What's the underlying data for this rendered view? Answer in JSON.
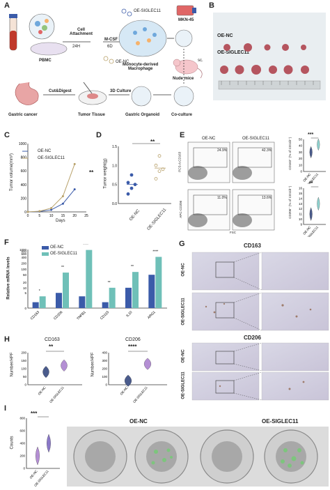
{
  "panels": [
    "A",
    "B",
    "C",
    "D",
    "E",
    "F",
    "G",
    "H",
    "I"
  ],
  "A": {
    "pbmc": "PBMC",
    "cell_attachment": "Cell\nAttachment",
    "t24h": "24H",
    "mcsf": "M-CSF",
    "d6": "6D",
    "oe_siglec11": "OE-SIGLEC11",
    "oe_nc": "OE-NC",
    "mdm": "Monocyte-derived\nMacrophage",
    "mkn45": "MKN-45",
    "sc": "sc.",
    "nude": "Nude mice",
    "gastric_cancer": "Gastric cancer",
    "cut_digest": "Cut&Digest",
    "tumor_tissue": "Tumor Tissue",
    "culture3d": "3D Culture",
    "organoid": "Gastric Organoid",
    "coculture": "Co-culture"
  },
  "B": {
    "row1": "OE-NC",
    "row2": "OE-SIGLEC11"
  },
  "C": {
    "chart_data": {
      "type": "line",
      "x": [
        0,
        5,
        10,
        15,
        20
      ],
      "series": [
        {
          "name": "OE-NC",
          "values": [
            0,
            5,
            30,
            120,
            330
          ],
          "color": "#3b5ba9"
        },
        {
          "name": "OE-SIGLEC11",
          "values": [
            0,
            10,
            55,
            230,
            700
          ],
          "color": "#b8a16a"
        }
      ],
      "xlabel": "Days",
      "ylabel": "Tumor volume(mm³)",
      "xticks": [
        "0",
        "5",
        "10",
        "15",
        "20",
        "25"
      ],
      "yticks": [
        "0",
        "200",
        "400",
        "600",
        "800",
        "1000"
      ],
      "xlim": [
        0,
        25
      ],
      "ylim": [
        0,
        1000
      ],
      "annotation": "**"
    }
  },
  "D": {
    "chart_data": {
      "type": "scatter",
      "categories": [
        "OE-NC",
        "OE-SIGLEC11"
      ],
      "series": [
        {
          "name": "OE-NC",
          "values": [
            0.25,
            0.4,
            0.5,
            0.55,
            0.75
          ],
          "mean": 0.5,
          "color": "#3b5ba9"
        },
        {
          "name": "OE-SIGLEC11",
          "values": [
            0.65,
            0.85,
            0.9,
            1.0,
            1.25
          ],
          "mean": 0.93,
          "color": "#b8a16a"
        }
      ],
      "ylabel": "Tumor weight(g)",
      "yticks": [
        "0.0",
        "0.5",
        "1.0",
        "1.5"
      ],
      "ylim": [
        0,
        1.5
      ],
      "annotation": "**"
    }
  },
  "E": {
    "col1": "OE-NC",
    "col2": "OE-SIGLEC11",
    "y_top": "PCS-A:CD163",
    "y_bot": "APC-CD206",
    "x_lab": "FSC",
    "p1": "24.9%",
    "p2": "42.3%",
    "p3": "11.0%",
    "p4": "13.6%",
    "violin_top": {
      "chart_data": {
        "type": "violin",
        "categories": [
          "OE-NC",
          "OE-SIGLEC11"
        ],
        "values": [
          30,
          42
        ],
        "ylabel": "CD163⁺ (% of CD11b⁺)",
        "yticks": [
          "0",
          "10",
          "20",
          "30",
          "40",
          "50"
        ],
        "ylim": [
          0,
          50
        ],
        "annotation": "***"
      }
    },
    "violin_bot": {
      "chart_data": {
        "type": "violin",
        "categories": [
          "OE-NC",
          "OE-SIGLEC11"
        ],
        "values": [
          11,
          13
        ],
        "ylabel": "CD206⁺ (% of CD11b⁺)",
        "yticks": [
          "9",
          "10",
          "11",
          "12",
          "13",
          "14",
          "15",
          "16"
        ],
        "ylim": [
          9,
          16
        ],
        "annotation": "**"
      }
    }
  },
  "F": {
    "chart_data": {
      "type": "bar",
      "categories": [
        "CD163",
        "CD206",
        "TNFB1",
        "CD115",
        "IL10",
        "ARG1"
      ],
      "series": [
        {
          "name": "OE-NC",
          "values": [
            1,
            5,
            3,
            1,
            10,
            50
          ],
          "color": "#3b5ba9"
        },
        {
          "name": "OE-SIGLEC11",
          "values": [
            3,
            65,
            950,
            10,
            70,
            420
          ],
          "color": "#6fc0b8"
        }
      ],
      "ylabel": "Relative mRNA levels",
      "yticks": [
        "0",
        "5",
        "10",
        "20",
        "50",
        "100",
        "200",
        "400",
        "600",
        "800",
        "1000"
      ],
      "stars": [
        "*",
        "**",
        "****",
        "**",
        "**",
        "****"
      ]
    }
  },
  "G": {
    "cd163": "CD163",
    "cd206": "CD206",
    "oe_nc": "OE-NC",
    "oe_siglec11": "OE-SIGLEC11"
  },
  "H": {
    "left": {
      "chart_data": {
        "type": "violin",
        "title": "CD163",
        "categories": [
          "OE-NC",
          "OE-SIGLEC11"
        ],
        "values": [
          80,
          120
        ],
        "ylabel": "Number/HPF",
        "yticks": [
          "0",
          "50",
          "100",
          "150",
          "200"
        ],
        "ylim": [
          0,
          200
        ],
        "annotation": "**"
      }
    },
    "right": {
      "chart_data": {
        "type": "violin",
        "title": "CD206",
        "categories": [
          "OE-NC",
          "OE-SIGLEC11"
        ],
        "values": [
          50,
          260
        ],
        "ylabel": "Number/HPF",
        "yticks": [
          "0",
          "100",
          "200",
          "300",
          "400"
        ],
        "ylim": [
          0,
          400
        ],
        "annotation": "****"
      }
    }
  },
  "I": {
    "chart_data": {
      "type": "violin",
      "categories": [
        "OE-NC",
        "OE-SIGLEC11"
      ],
      "values": [
        200,
        400
      ],
      "ylabel": "Counts",
      "yticks": [
        "0",
        "200",
        "400",
        "600",
        "800"
      ],
      "ylim": [
        0,
        800
      ],
      "annotation": "***"
    },
    "oe_nc": "OE-NC",
    "oe_siglec11": "OE-SIGLEC11"
  }
}
